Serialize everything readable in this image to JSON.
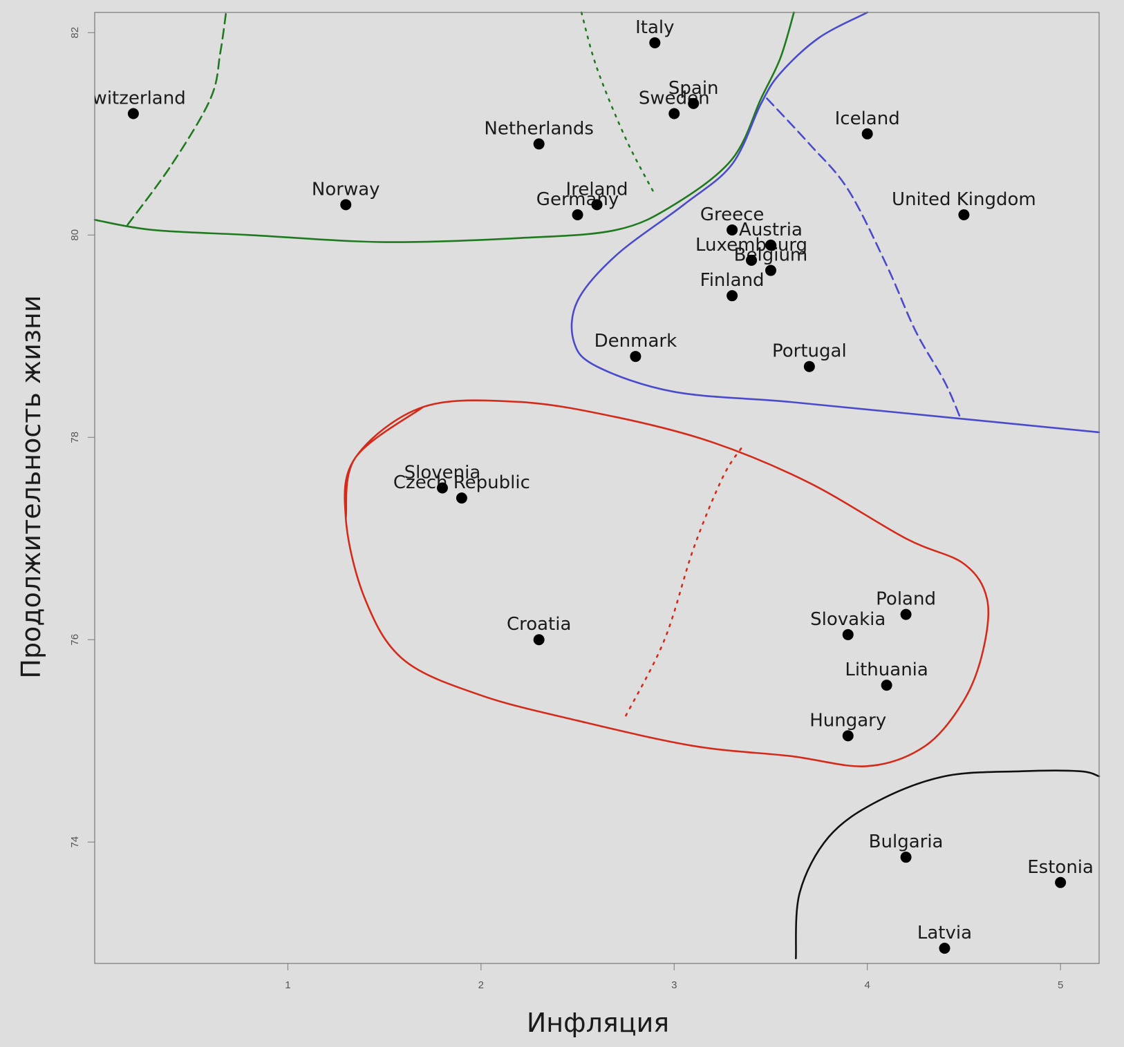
{
  "chart_data": {
    "type": "scatter",
    "xlabel": "Инфляция",
    "ylabel": "Продолжительность жизни",
    "xlim": [
      0,
      5.2
    ],
    "ylim": [
      72.8,
      82.2
    ],
    "xticks": [
      1,
      2,
      3,
      4,
      5
    ],
    "yticks": [
      74,
      76,
      78,
      80,
      82
    ],
    "grid": false,
    "points": [
      {
        "label": "Switzerland",
        "x": 0.2,
        "y": 81.2
      },
      {
        "label": "Italy",
        "x": 2.9,
        "y": 81.9
      },
      {
        "label": "Spain",
        "x": 3.1,
        "y": 81.3
      },
      {
        "label": "Sweden",
        "x": 3.0,
        "y": 81.2
      },
      {
        "label": "Netherlands",
        "x": 2.3,
        "y": 80.9
      },
      {
        "label": "Iceland",
        "x": 4.0,
        "y": 81.0
      },
      {
        "label": "Norway",
        "x": 1.3,
        "y": 80.3
      },
      {
        "label": "Ireland",
        "x": 2.6,
        "y": 80.3
      },
      {
        "label": "Germany",
        "x": 2.5,
        "y": 80.2
      },
      {
        "label": "United Kingdom",
        "x": 4.5,
        "y": 80.2
      },
      {
        "label": "Greece",
        "x": 3.3,
        "y": 80.05
      },
      {
        "label": "Austria",
        "x": 3.5,
        "y": 79.9
      },
      {
        "label": "Luxembourg",
        "x": 3.4,
        "y": 79.75
      },
      {
        "label": "Belgium",
        "x": 3.5,
        "y": 79.65
      },
      {
        "label": "Finland",
        "x": 3.3,
        "y": 79.4
      },
      {
        "label": "Denmark",
        "x": 2.8,
        "y": 78.8
      },
      {
        "label": "Portugal",
        "x": 3.7,
        "y": 78.7
      },
      {
        "label": "Slovenia",
        "x": 1.8,
        "y": 77.5
      },
      {
        "label": "Czech Republic",
        "x": 1.9,
        "y": 77.4
      },
      {
        "label": "Croatia",
        "x": 2.3,
        "y": 76.0
      },
      {
        "label": "Poland",
        "x": 4.2,
        "y": 76.25
      },
      {
        "label": "Slovakia",
        "x": 3.9,
        "y": 76.05
      },
      {
        "label": "Lithuania",
        "x": 4.1,
        "y": 75.55
      },
      {
        "label": "Hungary",
        "x": 3.9,
        "y": 75.05
      },
      {
        "label": "Bulgaria",
        "x": 4.2,
        "y": 73.85
      },
      {
        "label": "Estonia",
        "x": 5.0,
        "y": 73.6
      },
      {
        "label": "Latvia",
        "x": 4.4,
        "y": 72.95
      }
    ],
    "annotations": [
      {
        "type": "cluster-boundary",
        "color": "#1f7a1f",
        "style": "solid",
        "points": [
          [
            0.0,
            80.15
          ],
          [
            0.3,
            80.05
          ],
          [
            0.8,
            80.0
          ],
          [
            1.5,
            79.93
          ],
          [
            2.2,
            79.97
          ],
          [
            2.7,
            80.05
          ],
          [
            3.0,
            80.3
          ],
          [
            3.3,
            80.75
          ],
          [
            3.45,
            81.35
          ],
          [
            3.55,
            81.75
          ],
          [
            3.62,
            82.2
          ]
        ]
      },
      {
        "type": "cluster-divider",
        "color": "#1f7a1f",
        "style": "dashed",
        "points": [
          [
            0.17,
            80.1
          ],
          [
            0.4,
            80.7
          ],
          [
            0.6,
            81.35
          ],
          [
            0.65,
            81.8
          ],
          [
            0.68,
            82.2
          ]
        ]
      },
      {
        "type": "cluster-divider",
        "color": "#1f7a1f",
        "style": "dotted",
        "points": [
          [
            2.52,
            82.2
          ],
          [
            2.6,
            81.65
          ],
          [
            2.75,
            80.95
          ],
          [
            2.9,
            80.4
          ]
        ]
      },
      {
        "type": "cluster-boundary",
        "color": "#4a4acc",
        "style": "solid",
        "points": [
          [
            4.0,
            82.2
          ],
          [
            3.75,
            81.95
          ],
          [
            3.55,
            81.6
          ],
          [
            3.45,
            81.3
          ],
          [
            3.3,
            80.7
          ],
          [
            3.05,
            80.3
          ],
          [
            2.7,
            79.8
          ],
          [
            2.5,
            79.35
          ],
          [
            2.48,
            78.95
          ],
          [
            2.6,
            78.7
          ],
          [
            3.0,
            78.45
          ],
          [
            3.6,
            78.35
          ],
          [
            4.4,
            78.2
          ],
          [
            5.2,
            78.05
          ]
        ]
      },
      {
        "type": "cluster-divider",
        "color": "#4a4acc",
        "style": "dashed",
        "points": [
          [
            3.48,
            81.35
          ],
          [
            3.7,
            80.9
          ],
          [
            3.9,
            80.45
          ],
          [
            4.1,
            79.7
          ],
          [
            4.25,
            79.05
          ],
          [
            4.4,
            78.55
          ],
          [
            4.48,
            78.2
          ]
        ]
      },
      {
        "type": "cluster-boundary",
        "color": "#d42a1a",
        "style": "solid",
        "closed": true,
        "points": [
          [
            1.3,
            77.2
          ],
          [
            1.35,
            77.8
          ],
          [
            1.7,
            78.3
          ],
          [
            2.2,
            78.35
          ],
          [
            2.7,
            78.2
          ],
          [
            3.2,
            77.95
          ],
          [
            3.7,
            77.55
          ],
          [
            4.2,
            77.0
          ],
          [
            4.5,
            76.75
          ],
          [
            4.62,
            76.4
          ],
          [
            4.6,
            75.9
          ],
          [
            4.5,
            75.4
          ],
          [
            4.3,
            74.95
          ],
          [
            4.0,
            74.75
          ],
          [
            3.6,
            74.85
          ],
          [
            3.1,
            74.95
          ],
          [
            2.5,
            75.2
          ],
          [
            2.0,
            75.45
          ],
          [
            1.6,
            75.8
          ],
          [
            1.4,
            76.4
          ]
        ]
      },
      {
        "type": "cluster-divider",
        "color": "#d42a1a",
        "style": "dotted",
        "points": [
          [
            2.75,
            75.25
          ],
          [
            2.95,
            76.0
          ],
          [
            3.1,
            76.9
          ],
          [
            3.25,
            77.6
          ],
          [
            3.35,
            77.9
          ]
        ]
      },
      {
        "type": "cluster-boundary",
        "color": "#111111",
        "style": "solid",
        "points": [
          [
            3.63,
            72.85
          ],
          [
            3.65,
            73.5
          ],
          [
            3.8,
            74.05
          ],
          [
            4.05,
            74.4
          ],
          [
            4.4,
            74.65
          ],
          [
            4.8,
            74.7
          ],
          [
            5.1,
            74.7
          ],
          [
            5.2,
            74.65
          ]
        ]
      }
    ]
  }
}
